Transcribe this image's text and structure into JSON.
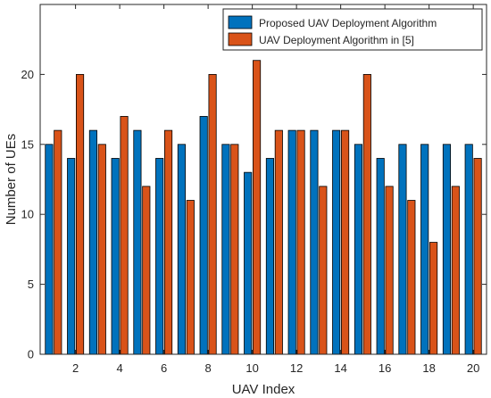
{
  "chart_data": {
    "type": "bar",
    "xlabel": "UAV Index",
    "ylabel": "Number of UEs",
    "categories": [
      1,
      2,
      3,
      4,
      5,
      6,
      7,
      8,
      9,
      10,
      11,
      12,
      13,
      14,
      15,
      16,
      17,
      18,
      19,
      20
    ],
    "xticks": [
      "2",
      "4",
      "6",
      "8",
      "10",
      "12",
      "14",
      "16",
      "18",
      "20"
    ],
    "yticks": [
      "0",
      "5",
      "10",
      "15",
      "20"
    ],
    "ylim": [
      0,
      25
    ],
    "xlim": [
      0.4,
      20.6
    ],
    "grid": false,
    "legend_position": "top-right",
    "series": [
      {
        "name": "Proposed UAV Deployment Algorithm",
        "color": "#0072BD",
        "values": [
          15,
          14,
          16,
          14,
          16,
          14,
          15,
          17,
          15,
          13,
          14,
          16,
          16,
          16,
          15,
          14,
          15,
          15,
          15,
          15
        ]
      },
      {
        "name": "UAV Deployment Algorithm in [5]",
        "color": "#D95319",
        "values": [
          16,
          20,
          15,
          17,
          12,
          16,
          11,
          20,
          15,
          21,
          16,
          16,
          12,
          16,
          20,
          12,
          11,
          8,
          12,
          14
        ]
      }
    ]
  }
}
